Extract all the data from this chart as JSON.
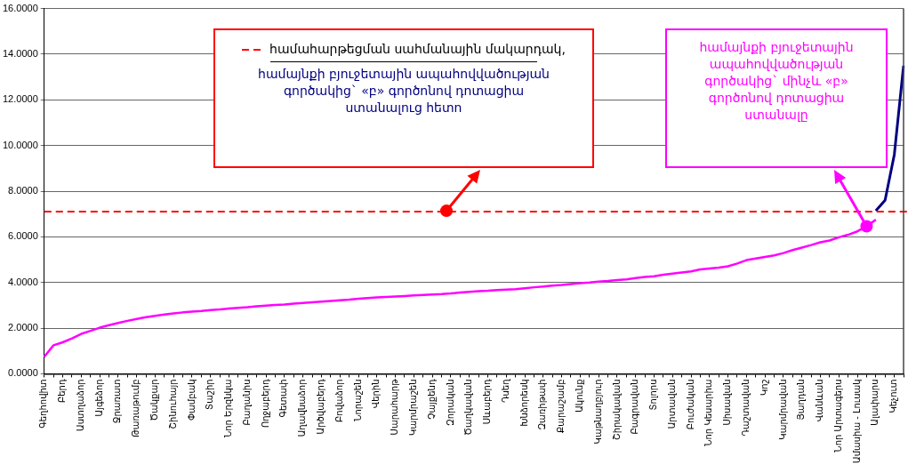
{
  "chart_data": {
    "type": "line",
    "categories": [
      "Գեղհովիտ",
      null,
      "Բերդ",
      null,
      "Աստղաձոր",
      null,
      "Այգեձոր",
      null,
      "Ջրառատ",
      null,
      "Թառաթումբ",
      null,
      "Ծակքար",
      null,
      "Շինուհայր",
      null,
      "Փամբակ",
      null,
      "Տաշիր",
      null,
      "Նոր Երզնկա",
      null,
      "Բաղանիս",
      null,
      "Ողջաբերդ",
      null,
      "Գետափ",
      null,
      "Աղավնաձոր",
      null,
      "Արծվաբերդ",
      null,
      "Բովաձոր",
      null,
      "Նորաշեն",
      null,
      "Վերին",
      null,
      "Սարահարթ",
      null,
      "Կարմրաշեն",
      null,
      "Չայքենդ",
      null,
      "Զորական",
      null,
      "Ծաղկավան",
      null,
      "Սևաբերդ",
      null,
      "Դսեղ",
      null,
      "Խնձորեսկ",
      null,
      "Զառիթափ",
      null,
      "Քարաշամբ",
      null,
      "Ակունք",
      null,
      "Կաթնաղբյուր",
      null,
      "Շիրակավան",
      null,
      "Բագրավան",
      null,
      "Տոլորս",
      null,
      "Արտավան",
      null,
      "Բուժական",
      null,
      "Նոր Կեսարիա",
      null,
      "Սիսավան",
      null,
      "Դաշտավան",
      null,
      "Կոշ",
      null,
      "Կարմրավան",
      null,
      "Յաղդան",
      null,
      "Վանևան",
      null,
      "Նոր Արտագերս",
      null,
      "Ամասիա - Լուսակ",
      null,
      "Ալափարս",
      null,
      "Կեչուտ",
      null
    ],
    "series": [
      {
        "name": "համայնքի բյուջետային ապահովվածության գործակից` «բ» գործոնով դոտացիա ստանալուց հետո",
        "color": "#000080",
        "values": [
          null,
          null,
          null,
          null,
          null,
          null,
          null,
          null,
          null,
          null,
          null,
          null,
          null,
          null,
          null,
          null,
          null,
          null,
          null,
          null,
          null,
          null,
          null,
          null,
          null,
          null,
          null,
          null,
          null,
          null,
          null,
          null,
          null,
          null,
          null,
          null,
          null,
          null,
          null,
          null,
          null,
          null,
          null,
          null,
          null,
          null,
          null,
          null,
          null,
          null,
          null,
          null,
          null,
          null,
          null,
          null,
          null,
          null,
          null,
          null,
          null,
          null,
          null,
          null,
          null,
          null,
          null,
          null,
          null,
          null,
          null,
          null,
          null,
          null,
          null,
          null,
          null,
          null,
          null,
          null,
          null,
          null,
          null,
          null,
          null,
          null,
          null,
          null,
          null,
          null,
          7.14,
          7.6,
          9.6,
          13.5
        ]
      },
      {
        "name": "համայնքի բյուջետային ապահովվածության գործակից` մինչև «բ» գործոնով դոտացիա ստանալը",
        "color": "#ff00ff",
        "values": [
          0.75,
          1.25,
          1.38,
          1.55,
          1.75,
          1.88,
          2.02,
          2.13,
          2.23,
          2.32,
          2.4,
          2.48,
          2.54,
          2.6,
          2.65,
          2.69,
          2.72,
          2.75,
          2.79,
          2.82,
          2.86,
          2.89,
          2.92,
          2.96,
          2.99,
          3.02,
          3.04,
          3.07,
          3.1,
          3.13,
          3.16,
          3.19,
          3.22,
          3.25,
          3.29,
          3.32,
          3.35,
          3.37,
          3.39,
          3.41,
          3.43,
          3.45,
          3.47,
          3.49,
          3.52,
          3.56,
          3.59,
          3.62,
          3.64,
          3.67,
          3.69,
          3.71,
          3.75,
          3.79,
          3.82,
          3.86,
          3.89,
          3.93,
          3.97,
          4.0,
          4.04,
          4.07,
          4.11,
          4.14,
          4.19,
          4.24,
          4.27,
          4.34,
          4.39,
          4.44,
          4.49,
          4.57,
          4.61,
          4.65,
          4.71,
          4.83,
          4.98,
          5.05,
          5.12,
          5.19,
          5.29,
          5.42,
          5.53,
          5.64,
          5.76,
          5.84,
          5.98,
          6.09,
          6.24,
          6.46,
          6.75,
          null,
          null,
          null
        ]
      }
    ],
    "ylim": [
      0,
      16
    ],
    "yticks": [
      {
        "value": 0,
        "label": "0.0000"
      },
      {
        "value": 2,
        "label": "2.0000"
      },
      {
        "value": 4,
        "label": "4.0000"
      },
      {
        "value": 6,
        "label": "6.0000"
      },
      {
        "value": 8,
        "label": "8.0000"
      },
      {
        "value": 10,
        "label": "10.0000"
      },
      {
        "value": 12,
        "label": "12.0000"
      },
      {
        "value": 14,
        "label": "14.0000"
      },
      {
        "value": 16,
        "label": "16.0000"
      }
    ],
    "grid": "y",
    "ref_lines": [
      {
        "axis": "y",
        "value": 7.14,
        "label": "համահարթեցման սահմանային մակարդակ,",
        "color": "#ff0000",
        "line_style": "dashed"
      }
    ]
  }
}
